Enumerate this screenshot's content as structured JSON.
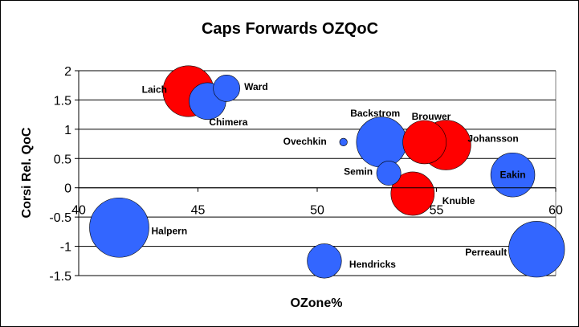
{
  "chart_data": {
    "type": "scatter",
    "title": "Caps Forwards OZQoC",
    "xlabel": "OZone%",
    "ylabel": "Corsi Rel. QoC",
    "xlim": [
      40,
      60
    ],
    "ylim": [
      -1.5,
      2
    ],
    "xticks": [
      "40",
      "45",
      "50",
      "55",
      "60"
    ],
    "yticks": [
      "2",
      "1.5",
      "1",
      "0.5",
      "0",
      "-0.5",
      "-1",
      "-1.5"
    ],
    "grid": "horizontal",
    "colors": {
      "blue": "#3366ff",
      "red": "#ff0000",
      "frame": "#808080"
    },
    "points": [
      {
        "name": "Laich",
        "x": 44.6,
        "y": 1.65,
        "size": 2.2,
        "color": "red"
      },
      {
        "name": "Ward",
        "x": 46.2,
        "y": 1.7,
        "size": 0.6,
        "color": "blue"
      },
      {
        "name": "Chimera",
        "x": 45.4,
        "y": 1.48,
        "size": 1.15,
        "color": "blue"
      },
      {
        "name": "Backstrom",
        "x": 52.7,
        "y": 0.78,
        "size": 2.15,
        "color": "blue"
      },
      {
        "name": "Brouwer",
        "x": 54.5,
        "y": 0.78,
        "size": 1.6,
        "color": "red"
      },
      {
        "name": "Johansson",
        "x": 55.4,
        "y": 0.73,
        "size": 2.1,
        "color": "red"
      },
      {
        "name": "Ovechkin",
        "x": 51.1,
        "y": 0.78,
        "size": 0.05,
        "color": "blue"
      },
      {
        "name": "Semin",
        "x": 53.0,
        "y": 0.25,
        "size": 0.5,
        "color": "blue"
      },
      {
        "name": "Eakin",
        "x": 58.2,
        "y": 0.22,
        "size": 1.65,
        "color": "blue"
      },
      {
        "name": "Knuble",
        "x": 54.0,
        "y": -0.1,
        "size": 1.6,
        "color": "red"
      },
      {
        "name": "Halpern",
        "x": 41.7,
        "y": -0.68,
        "size": 3.0,
        "color": "blue"
      },
      {
        "name": "Hendricks",
        "x": 50.3,
        "y": -1.25,
        "size": 1.0,
        "color": "blue"
      },
      {
        "name": "Perreault",
        "x": 59.2,
        "y": -1.05,
        "size": 2.65,
        "color": "blue"
      }
    ]
  }
}
